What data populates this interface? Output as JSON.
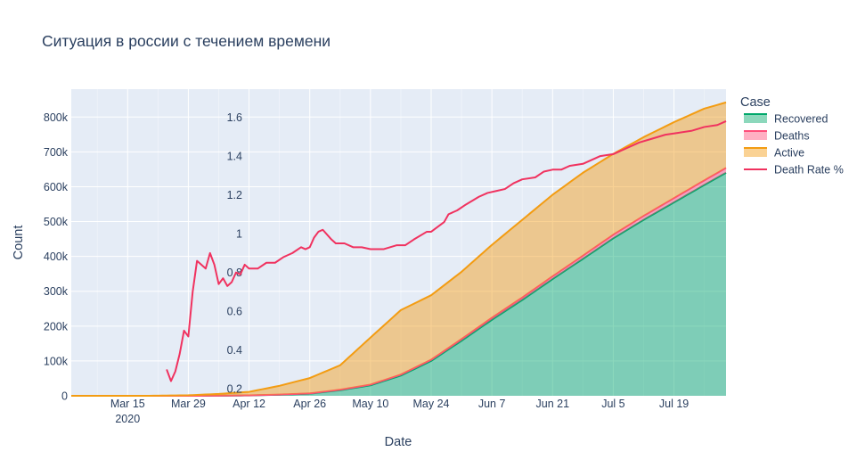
{
  "chart_data": {
    "type": "area",
    "title": "Ситуация в россии с течением времени",
    "xlabel": "Date",
    "ylabel": "Count",
    "legend_title": "Case",
    "legend_position": "right",
    "grid": true,
    "x_range": [
      "2020-03-02",
      "2020-07-31"
    ],
    "ylim": [
      0,
      880000
    ],
    "x_ticks": [
      {
        "date": "2020-03-15",
        "label": "Mar 15",
        "sublabel": "2020"
      },
      {
        "date": "2020-03-29",
        "label": "Mar 29"
      },
      {
        "date": "2020-04-12",
        "label": "Apr 12"
      },
      {
        "date": "2020-04-26",
        "label": "Apr 26"
      },
      {
        "date": "2020-05-10",
        "label": "May 10"
      },
      {
        "date": "2020-05-24",
        "label": "May 24"
      },
      {
        "date": "2020-06-07",
        "label": "Jun 7"
      },
      {
        "date": "2020-06-21",
        "label": "Jun 21"
      },
      {
        "date": "2020-07-05",
        "label": "Jul 5"
      },
      {
        "date": "2020-07-19",
        "label": "Jul 19"
      }
    ],
    "y_ticks": [
      {
        "value": 0,
        "label": "0"
      },
      {
        "value": 100000,
        "label": "100k"
      },
      {
        "value": 200000,
        "label": "200k"
      },
      {
        "value": 300000,
        "label": "300k"
      },
      {
        "value": 400000,
        "label": "400k"
      },
      {
        "value": 500000,
        "label": "500k"
      },
      {
        "value": 600000,
        "label": "600k"
      },
      {
        "value": 700000,
        "label": "700k"
      },
      {
        "value": 800000,
        "label": "800k"
      }
    ],
    "y2lim": [
      0.155,
      1.745
    ],
    "y2_ticks": [
      {
        "value": 0.2,
        "label": "0.2"
      },
      {
        "value": 0.4,
        "label": "0.4"
      },
      {
        "value": 0.6,
        "label": "0.6"
      },
      {
        "value": 0.8,
        "label": "0.8"
      },
      {
        "value": 1.0,
        "label": "1"
      },
      {
        "value": 1.2,
        "label": "1.2"
      },
      {
        "value": 1.4,
        "label": "1.4"
      },
      {
        "value": 1.6,
        "label": "1.6"
      }
    ],
    "series": [
      {
        "name": "Recovered",
        "color": "#00a86b",
        "points": [
          [
            "2020-03-02",
            0
          ],
          [
            "2020-03-29",
            0
          ],
          [
            "2020-04-05",
            200
          ],
          [
            "2020-04-12",
            1000
          ],
          [
            "2020-04-19",
            3000
          ],
          [
            "2020-04-26",
            6000
          ],
          [
            "2020-05-03",
            16000
          ],
          [
            "2020-05-10",
            30000
          ],
          [
            "2020-05-17",
            58000
          ],
          [
            "2020-05-24",
            100000
          ],
          [
            "2020-05-31",
            158000
          ],
          [
            "2020-06-07",
            218000
          ],
          [
            "2020-06-14",
            275000
          ],
          [
            "2020-06-21",
            335000
          ],
          [
            "2020-06-28",
            393000
          ],
          [
            "2020-07-05",
            452000
          ],
          [
            "2020-07-12",
            505000
          ],
          [
            "2020-07-19",
            555000
          ],
          [
            "2020-07-26",
            605000
          ],
          [
            "2020-07-31",
            640000
          ]
        ]
      },
      {
        "name": "Deaths",
        "color": "#ff4d7a",
        "points": [
          [
            "2020-03-02",
            0
          ],
          [
            "2020-03-29",
            0
          ],
          [
            "2020-04-12",
            300
          ],
          [
            "2020-04-26",
            900
          ],
          [
            "2020-05-10",
            2100
          ],
          [
            "2020-05-24",
            3600
          ],
          [
            "2020-06-07",
            6000
          ],
          [
            "2020-06-21",
            7900
          ],
          [
            "2020-07-05",
            10300
          ],
          [
            "2020-07-19",
            12300
          ],
          [
            "2020-07-31",
            13900
          ]
        ]
      },
      {
        "name": "Active",
        "color": "#f39c12",
        "points": [
          [
            "2020-03-02",
            0
          ],
          [
            "2020-03-20",
            0
          ],
          [
            "2020-03-29",
            1500
          ],
          [
            "2020-04-05",
            5000
          ],
          [
            "2020-04-12",
            10000
          ],
          [
            "2020-04-19",
            25000
          ],
          [
            "2020-04-26",
            44000
          ],
          [
            "2020-05-03",
            70000
          ],
          [
            "2020-05-10",
            135000
          ],
          [
            "2020-05-17",
            185000
          ],
          [
            "2020-05-24",
            185000
          ],
          [
            "2020-05-31",
            193000
          ],
          [
            "2020-06-07",
            209000
          ],
          [
            "2020-06-14",
            223000
          ],
          [
            "2020-06-21",
            234000
          ],
          [
            "2020-06-28",
            238000
          ],
          [
            "2020-07-05",
            232000
          ],
          [
            "2020-07-12",
            226000
          ],
          [
            "2020-07-19",
            218000
          ],
          [
            "2020-07-26",
            206000
          ],
          [
            "2020-07-31",
            188000
          ]
        ]
      },
      {
        "name": "Death Rate %",
        "color": "#f0325f",
        "axis": "y2",
        "points": [
          [
            "2020-03-24",
            0.3
          ],
          [
            "2020-03-25",
            0.24
          ],
          [
            "2020-03-26",
            0.29
          ],
          [
            "2020-03-27",
            0.38
          ],
          [
            "2020-03-28",
            0.5
          ],
          [
            "2020-03-29",
            0.47
          ],
          [
            "2020-03-30",
            0.7
          ],
          [
            "2020-03-31",
            0.86
          ],
          [
            "2020-04-02",
            0.82
          ],
          [
            "2020-04-03",
            0.9
          ],
          [
            "2020-04-04",
            0.84
          ],
          [
            "2020-04-05",
            0.74
          ],
          [
            "2020-04-06",
            0.77
          ],
          [
            "2020-04-07",
            0.73
          ],
          [
            "2020-04-08",
            0.75
          ],
          [
            "2020-04-09",
            0.8
          ],
          [
            "2020-04-10",
            0.79
          ],
          [
            "2020-04-11",
            0.84
          ],
          [
            "2020-04-12",
            0.82
          ],
          [
            "2020-04-14",
            0.82
          ],
          [
            "2020-04-16",
            0.85
          ],
          [
            "2020-04-18",
            0.85
          ],
          [
            "2020-04-20",
            0.88
          ],
          [
            "2020-04-22",
            0.9
          ],
          [
            "2020-04-24",
            0.93
          ],
          [
            "2020-04-25",
            0.92
          ],
          [
            "2020-04-26",
            0.93
          ],
          [
            "2020-04-27",
            0.98
          ],
          [
            "2020-04-28",
            1.01
          ],
          [
            "2020-04-29",
            1.02
          ],
          [
            "2020-05-01",
            0.97
          ],
          [
            "2020-05-02",
            0.95
          ],
          [
            "2020-05-04",
            0.95
          ],
          [
            "2020-05-06",
            0.93
          ],
          [
            "2020-05-08",
            0.93
          ],
          [
            "2020-05-10",
            0.92
          ],
          [
            "2020-05-13",
            0.92
          ],
          [
            "2020-05-16",
            0.94
          ],
          [
            "2020-05-18",
            0.94
          ],
          [
            "2020-05-20",
            0.97
          ],
          [
            "2020-05-23",
            1.01
          ],
          [
            "2020-05-24",
            1.01
          ],
          [
            "2020-05-27",
            1.06
          ],
          [
            "2020-05-28",
            1.1
          ],
          [
            "2020-05-30",
            1.12
          ],
          [
            "2020-06-01",
            1.15
          ],
          [
            "2020-06-04",
            1.19
          ],
          [
            "2020-06-06",
            1.21
          ],
          [
            "2020-06-08",
            1.22
          ],
          [
            "2020-06-10",
            1.23
          ],
          [
            "2020-06-12",
            1.26
          ],
          [
            "2020-06-14",
            1.28
          ],
          [
            "2020-06-17",
            1.29
          ],
          [
            "2020-06-19",
            1.32
          ],
          [
            "2020-06-21",
            1.33
          ],
          [
            "2020-06-23",
            1.33
          ],
          [
            "2020-06-25",
            1.35
          ],
          [
            "2020-06-28",
            1.36
          ],
          [
            "2020-06-30",
            1.38
          ],
          [
            "2020-07-02",
            1.4
          ],
          [
            "2020-07-05",
            1.41
          ],
          [
            "2020-07-08",
            1.44
          ],
          [
            "2020-07-11",
            1.47
          ],
          [
            "2020-07-14",
            1.49
          ],
          [
            "2020-07-17",
            1.51
          ],
          [
            "2020-07-20",
            1.52
          ],
          [
            "2020-07-23",
            1.53
          ],
          [
            "2020-07-26",
            1.55
          ],
          [
            "2020-07-29",
            1.56
          ],
          [
            "2020-07-31",
            1.58
          ]
        ]
      }
    ]
  }
}
